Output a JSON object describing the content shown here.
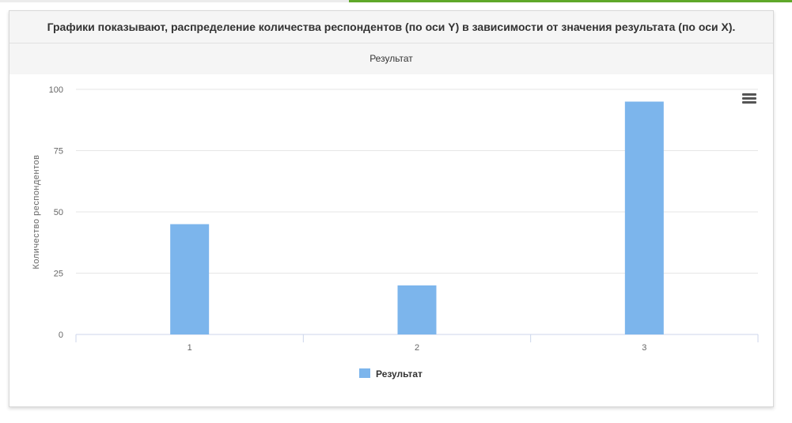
{
  "header": {
    "title": "Графики показывают, распределение количества респондентов (по оси Y) в зависимости от значения результата (по оси X)."
  },
  "chart_data": {
    "type": "bar",
    "title": "Результат",
    "xlabel": "",
    "ylabel": "Количество респондентов",
    "categories": [
      "1",
      "2",
      "3"
    ],
    "series": [
      {
        "name": "Результат",
        "values": [
          45,
          20,
          95
        ],
        "color": "#7cb5ec"
      }
    ],
    "ylim": [
      0,
      100
    ],
    "yticks": [
      0,
      25,
      50,
      75,
      100
    ],
    "grid": true,
    "legend": "bottom-center"
  },
  "menu_icon": "hamburger-menu-icon"
}
